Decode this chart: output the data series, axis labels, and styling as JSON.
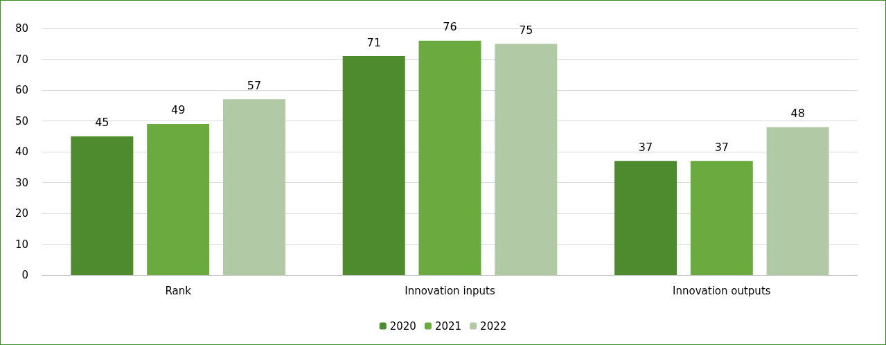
{
  "chart_data": {
    "type": "bar",
    "categories": [
      "Rank",
      "Innovation inputs",
      "Innovation outputs"
    ],
    "series": [
      {
        "name": "2020",
        "color": "#4e8a2e",
        "values": [
          45,
          71,
          37
        ]
      },
      {
        "name": "2021",
        "color": "#6aaa3f",
        "values": [
          49,
          76,
          37
        ]
      },
      {
        "name": "2022",
        "color": "#b2c9a6",
        "values": [
          57,
          75,
          48
        ]
      }
    ],
    "ylim": [
      0,
      80
    ],
    "yticks": [
      0,
      10,
      20,
      30,
      40,
      50,
      60,
      70,
      80
    ],
    "grid": "y",
    "legend": "bottom",
    "data_labels": true
  }
}
